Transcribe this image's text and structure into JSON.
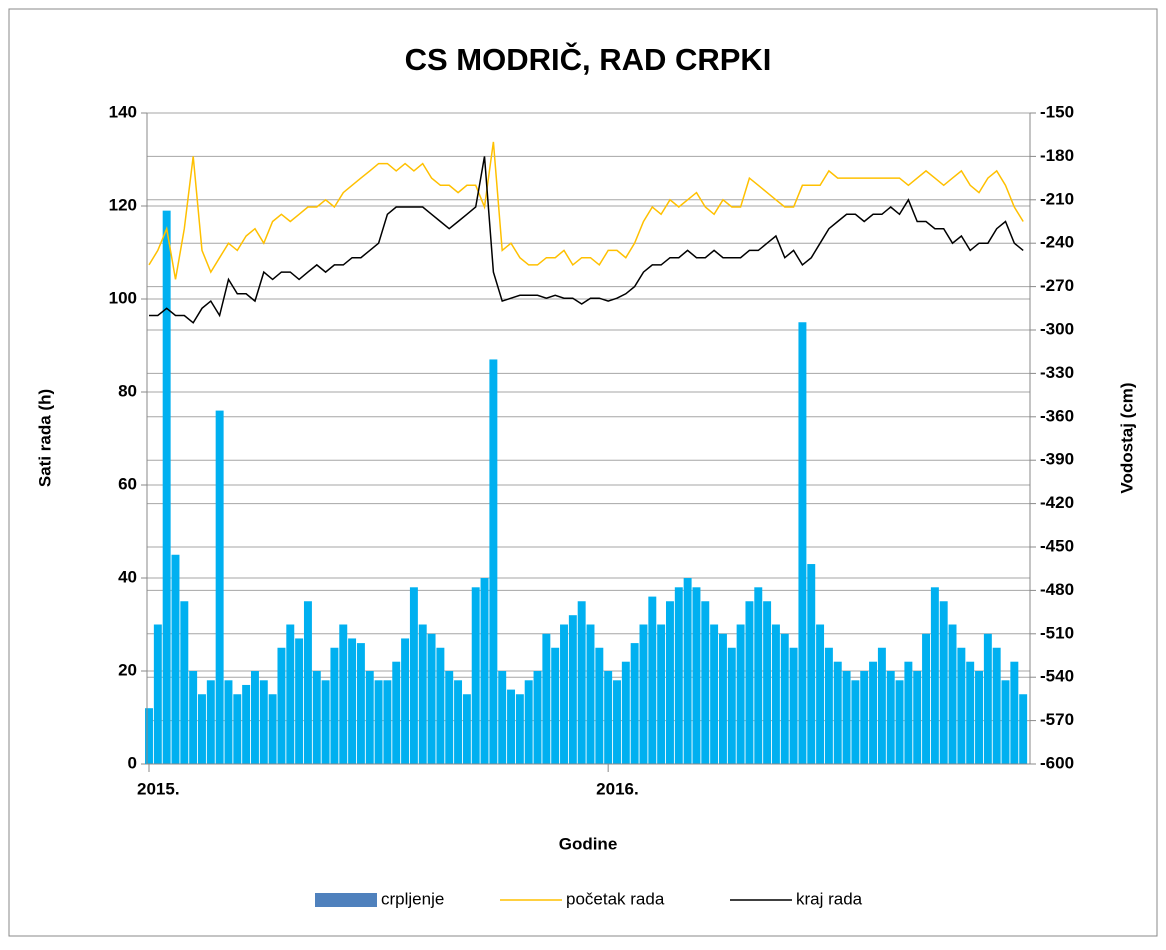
{
  "chart_data": {
    "type": "bar-line",
    "title": "CS MODRIČ, RAD CRPKI",
    "x_label": "Godine",
    "y_label": "Sati rada (h)",
    "y2_label": "Vodostaj (cm)",
    "categories": [
      "2015.",
      null,
      null,
      null,
      null,
      null,
      null,
      null,
      null,
      null,
      null,
      null,
      null,
      null,
      null,
      null,
      null,
      null,
      null,
      null,
      null,
      null,
      null,
      null,
      null,
      null,
      null,
      null,
      null,
      null,
      null,
      null,
      null,
      null,
      null,
      null,
      null,
      null,
      null,
      null,
      null,
      null,
      null,
      null,
      null,
      null,
      null,
      null,
      null,
      null,
      null,
      null,
      "2016.",
      null,
      null,
      null,
      null,
      null,
      null,
      null,
      null,
      null,
      null,
      null,
      null,
      null,
      null,
      null,
      null,
      null,
      null,
      null,
      null,
      null,
      null,
      null,
      null,
      null,
      null,
      null,
      null,
      null,
      null,
      null,
      null,
      null,
      null,
      null,
      null,
      null,
      null,
      null,
      null,
      null,
      null,
      null,
      null,
      null,
      null,
      null
    ],
    "ylim": [
      0,
      140
    ],
    "yticks": [
      0,
      20,
      40,
      60,
      80,
      100,
      120,
      140
    ],
    "y2lim": [
      -600,
      -150
    ],
    "y2ticks": [
      -600,
      -570,
      -540,
      -510,
      -480,
      -450,
      -420,
      -390,
      -360,
      -330,
      -300,
      -270,
      -240,
      -210,
      -180,
      -150
    ],
    "grid": true,
    "legend": "bottom",
    "series": [
      {
        "name": "crpljenje",
        "kind": "bar",
        "color": "#00b0f0",
        "legend_color": "#4f81bd",
        "values": [
          12,
          30,
          119,
          45,
          35,
          20,
          15,
          18,
          76,
          18,
          15,
          17,
          20,
          18,
          15,
          25,
          30,
          27,
          35,
          20,
          18,
          25,
          30,
          27,
          26,
          20,
          18,
          18,
          22,
          27,
          38,
          30,
          28,
          25,
          20,
          18,
          15,
          38,
          40,
          87,
          20,
          16,
          15,
          18,
          20,
          28,
          25,
          30,
          32,
          35,
          30,
          25,
          20,
          18,
          22,
          26,
          30,
          36,
          30,
          35,
          38,
          40,
          38,
          35,
          30,
          28,
          25,
          30,
          35,
          38,
          35,
          30,
          28,
          25,
          95,
          43,
          30,
          25,
          22,
          20,
          18,
          20,
          22,
          25,
          20,
          18,
          22,
          20,
          28,
          38,
          35,
          30,
          25,
          22,
          20,
          28,
          25,
          18,
          22,
          15
        ]
      },
      {
        "name": "početak rada",
        "kind": "line",
        "axis": "y2",
        "color": "#ffc000",
        "values": [
          -255,
          -245,
          -230,
          -265,
          -230,
          -180,
          -245,
          -260,
          -250,
          -240,
          -245,
          -235,
          -230,
          -240,
          -225,
          -220,
          -225,
          -220,
          -215,
          -215,
          -210,
          -215,
          -205,
          -200,
          -195,
          -190,
          -185,
          -185,
          -190,
          -185,
          -190,
          -185,
          -195,
          -200,
          -200,
          -205,
          -200,
          -200,
          -215,
          -170,
          -245,
          -240,
          -250,
          -255,
          -255,
          -250,
          -250,
          -245,
          -255,
          -250,
          -250,
          -255,
          -245,
          -245,
          -250,
          -240,
          -225,
          -215,
          -220,
          -210,
          -215,
          -210,
          -205,
          -215,
          -220,
          -210,
          -215,
          -215,
          -195,
          -200,
          -205,
          -210,
          -215,
          -215,
          -200,
          -200,
          -200,
          -190,
          -195,
          -195,
          -195,
          -195,
          -195,
          -195,
          -195,
          -195,
          -200,
          -195,
          -190,
          -195,
          -200,
          -195,
          -190,
          -200,
          -205,
          -195,
          -190,
          -200,
          -215,
          -225
        ]
      },
      {
        "name": "kraj rada",
        "kind": "line",
        "axis": "y2",
        "color": "#000000",
        "values": [
          -290,
          -290,
          -285,
          -290,
          -290,
          -295,
          -285,
          -280,
          -290,
          -265,
          -275,
          -275,
          -280,
          -260,
          -265,
          -260,
          -260,
          -265,
          -260,
          -255,
          -260,
          -255,
          -255,
          -250,
          -250,
          -245,
          -240,
          -220,
          -215,
          -215,
          -215,
          -215,
          -220,
          -225,
          -230,
          -225,
          -220,
          -215,
          -180,
          -260,
          -280,
          -278,
          -276,
          -276,
          -276,
          -278,
          -276,
          -278,
          -278,
          -282,
          -278,
          -278,
          -280,
          -278,
          -275,
          -270,
          -260,
          -255,
          -255,
          -250,
          -250,
          -245,
          -250,
          -250,
          -245,
          -250,
          -250,
          -250,
          -245,
          -245,
          -240,
          -235,
          -250,
          -245,
          -255,
          -250,
          -240,
          -230,
          -225,
          -220,
          -220,
          -225,
          -220,
          -220,
          -215,
          -220,
          -210,
          -225,
          -225,
          -230,
          -230,
          -240,
          -235,
          -245,
          -240,
          -240,
          -230,
          -225,
          -240,
          -245
        ]
      }
    ]
  }
}
